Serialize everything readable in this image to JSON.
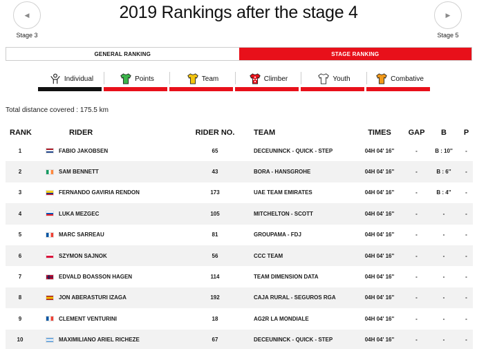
{
  "nav": {
    "prev": {
      "label": "Stage 3",
      "arrow": "◀"
    },
    "next": {
      "label": "Stage 5",
      "arrow": "▶"
    }
  },
  "page_title": "2019 Rankings after the stage 4",
  "ranking_toggle": {
    "general": "GENERAL RANKING",
    "stage": "STAGE RANKING",
    "active": "stage"
  },
  "category_tabs": [
    {
      "label": "Individual",
      "icon": "individual-icon",
      "active": true
    },
    {
      "label": "Points",
      "icon": "green-jersey-icon",
      "jersey_color": "#3cb54a"
    },
    {
      "label": "Team",
      "icon": "yellow-jersey-icon",
      "jersey_color": "#f2c40f"
    },
    {
      "label": "Climber",
      "icon": "polka-dot-jersey-icon",
      "jersey_color": "#e8101a"
    },
    {
      "label": "Youth",
      "icon": "white-jersey-icon",
      "jersey_color": "#ffffff"
    },
    {
      "label": "Combative",
      "icon": "combative-jersey-icon",
      "jersey_color": "#f29a1a"
    }
  ],
  "distance": {
    "label": "Total distance covered :",
    "value": "175.5 km"
  },
  "table": {
    "headers": {
      "rank": "RANK",
      "rider": "RIDER",
      "rider_no": "RIDER NO.",
      "team": "TEAM",
      "times": "TIMES",
      "gap": "GAP",
      "b": "B",
      "p": "P"
    },
    "rows": [
      {
        "rank": "1",
        "flag": "nl",
        "rider": "FABIO JAKOBSEN",
        "no": "65",
        "team": "DECEUNINCK - QUICK - STEP",
        "time": "04H 04' 16''",
        "gap": "-",
        "b": "B : 10''",
        "p": "-"
      },
      {
        "rank": "2",
        "flag": "ie",
        "rider": "SAM BENNETT",
        "no": "43",
        "team": "BORA - HANSGROHE",
        "time": "04H 04' 16''",
        "gap": "-",
        "b": "B : 6''",
        "p": "-"
      },
      {
        "rank": "3",
        "flag": "co",
        "rider": "FERNANDO GAVIRIA RENDON",
        "no": "173",
        "team": "UAE TEAM EMIRATES",
        "time": "04H 04' 16''",
        "gap": "-",
        "b": "B : 4''",
        "p": "-"
      },
      {
        "rank": "4",
        "flag": "si",
        "rider": "LUKA MEZGEC",
        "no": "105",
        "team": "MITCHELTON - SCOTT",
        "time": "04H 04' 16''",
        "gap": "-",
        "b": "-",
        "p": "-"
      },
      {
        "rank": "5",
        "flag": "fr",
        "rider": "MARC SARREAU",
        "no": "81",
        "team": "GROUPAMA - FDJ",
        "time": "04H 04' 16''",
        "gap": "-",
        "b": "-",
        "p": "-"
      },
      {
        "rank": "6",
        "flag": "pl",
        "rider": "SZYMON SAJNOK",
        "no": "56",
        "team": "CCC TEAM",
        "time": "04H 04' 16''",
        "gap": "-",
        "b": "-",
        "p": "-"
      },
      {
        "rank": "7",
        "flag": "no",
        "rider": "EDVALD BOASSON HAGEN",
        "no": "114",
        "team": "TEAM DIMENSION DATA",
        "time": "04H 04' 16''",
        "gap": "-",
        "b": "-",
        "p": "-"
      },
      {
        "rank": "8",
        "flag": "es",
        "rider": "JON ABERASTURI IZAGA",
        "no": "192",
        "team": "CAJA RURAL - SEGUROS RGA",
        "time": "04H 04' 16''",
        "gap": "-",
        "b": "-",
        "p": "-"
      },
      {
        "rank": "9",
        "flag": "fr",
        "rider": "CLEMENT VENTURINI",
        "no": "18",
        "team": "AG2R LA MONDIALE",
        "time": "04H 04' 16''",
        "gap": "-",
        "b": "-",
        "p": "-"
      },
      {
        "rank": "10",
        "flag": "ar",
        "rider": "MAXIMILIANO ARIEL RICHEZE",
        "no": "67",
        "team": "DECEUNINCK - QUICK - STEP",
        "time": "04H 04' 16''",
        "gap": "-",
        "b": "-",
        "p": "-"
      }
    ]
  },
  "colors": {
    "accent": "#e8101a",
    "active_bar": "#111111",
    "row_alt": "#f2f2f2"
  }
}
